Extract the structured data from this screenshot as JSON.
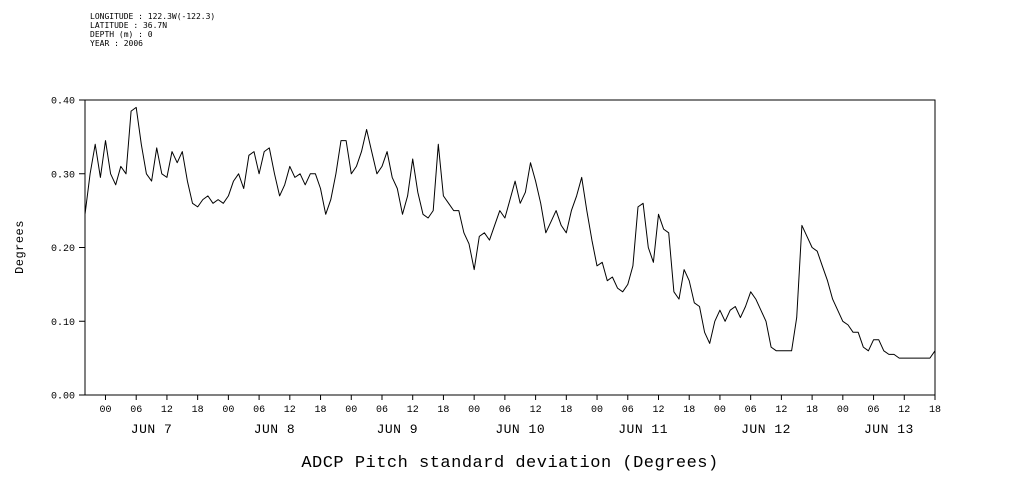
{
  "meta_block": {
    "lines": [
      "LONGITUDE : 122.3W(-122.3)",
      "LATITUDE : 36.7N",
      "DEPTH (m) : 0",
      "YEAR : 2006"
    ]
  },
  "chart_data": {
    "type": "line",
    "title": "ADCP Pitch standard deviation (Degrees)",
    "ylabel": "Degrees",
    "ylim": [
      0.0,
      0.4
    ],
    "y_ticks": [
      "0.00",
      "0.10",
      "0.20",
      "0.30",
      "0.40"
    ],
    "grid": false,
    "line_color": "#000000",
    "x_axis": {
      "note": "hours relative to JUN 7 00:00, year 2006",
      "tick_every_hours": 6,
      "hour_tick_labels": [
        "00",
        "06",
        "12",
        "18"
      ],
      "day_labels": [
        "JUN 7",
        "JUN 8",
        "JUN 9",
        "JUN 10",
        "JUN 11",
        "JUN 12",
        "JUN 13"
      ],
      "last_tick_hour_label": "18"
    },
    "series": [
      {
        "name": "ADCP Pitch standard deviation",
        "units": "Degrees",
        "interval_hours": 1,
        "start_hour_offset": -4,
        "values": [
          0.245,
          0.3,
          0.34,
          0.295,
          0.345,
          0.3,
          0.285,
          0.31,
          0.3,
          0.385,
          0.39,
          0.34,
          0.3,
          0.29,
          0.335,
          0.3,
          0.295,
          0.33,
          0.315,
          0.33,
          0.29,
          0.26,
          0.255,
          0.265,
          0.27,
          0.26,
          0.265,
          0.26,
          0.27,
          0.29,
          0.3,
          0.28,
          0.325,
          0.33,
          0.3,
          0.33,
          0.335,
          0.3,
          0.27,
          0.285,
          0.31,
          0.295,
          0.3,
          0.285,
          0.3,
          0.3,
          0.28,
          0.245,
          0.265,
          0.3,
          0.345,
          0.345,
          0.3,
          0.31,
          0.33,
          0.36,
          0.33,
          0.3,
          0.31,
          0.33,
          0.295,
          0.28,
          0.245,
          0.27,
          0.32,
          0.275,
          0.245,
          0.24,
          0.25,
          0.34,
          0.27,
          0.26,
          0.25,
          0.25,
          0.22,
          0.205,
          0.17,
          0.215,
          0.22,
          0.21,
          0.23,
          0.25,
          0.24,
          0.265,
          0.29,
          0.26,
          0.275,
          0.315,
          0.29,
          0.26,
          0.22,
          0.235,
          0.25,
          0.23,
          0.22,
          0.25,
          0.27,
          0.295,
          0.25,
          0.21,
          0.175,
          0.18,
          0.155,
          0.16,
          0.145,
          0.14,
          0.15,
          0.175,
          0.255,
          0.26,
          0.2,
          0.18,
          0.245,
          0.225,
          0.22,
          0.14,
          0.13,
          0.17,
          0.155,
          0.125,
          0.12,
          0.085,
          0.07,
          0.1,
          0.115,
          0.1,
          0.115,
          0.12,
          0.105,
          0.12,
          0.14,
          0.13,
          0.115,
          0.1,
          0.065,
          0.06,
          0.06,
          0.06,
          0.06,
          0.105,
          0.23,
          0.215,
          0.2,
          0.195,
          0.175,
          0.155,
          0.13,
          0.115,
          0.1,
          0.095,
          0.085,
          0.085,
          0.065,
          0.06,
          0.075,
          0.075,
          0.06,
          0.055,
          0.055,
          0.05,
          0.05,
          0.05,
          0.05,
          0.05,
          0.05,
          0.05,
          0.06
        ]
      }
    ]
  }
}
